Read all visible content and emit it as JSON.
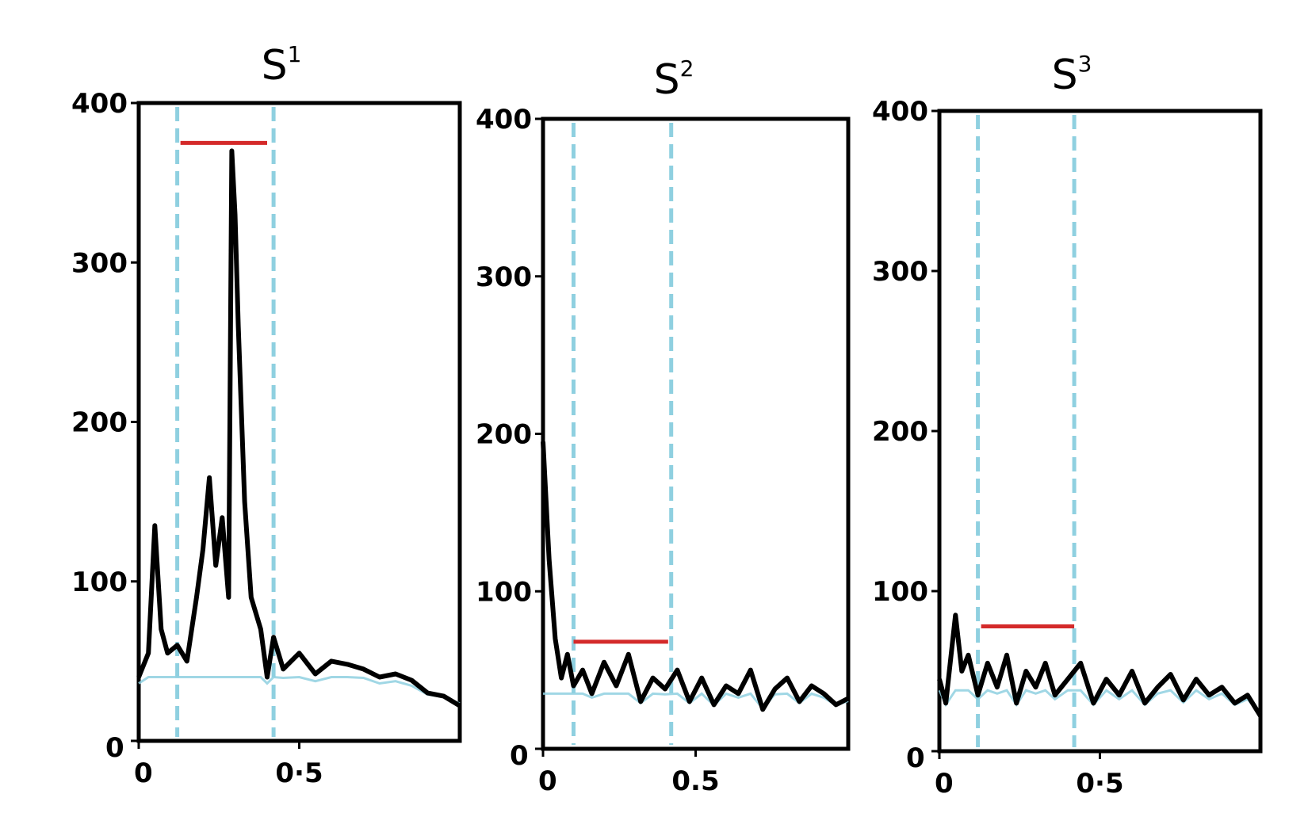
{
  "chart_data": [
    {
      "type": "line",
      "title_base": "S",
      "title_sup": "1",
      "ylim": [
        0,
        400
      ],
      "yticks": [
        0,
        100,
        200,
        300,
        400
      ],
      "xlim": [
        0,
        1
      ],
      "xticks": [
        0,
        0.5
      ],
      "x_tick_labels": [
        "0",
        "0·5"
      ],
      "y_tick_labels": [
        "0",
        "100",
        "200",
        "300",
        "400"
      ],
      "window": [
        0.12,
        0.42
      ],
      "bar": {
        "x0": 0.13,
        "x1": 0.4,
        "y": 375
      },
      "peak": {
        "x": 0.29,
        "y": 375
      },
      "base_level": 40,
      "series": [
        {
          "values_x": [
            0.0,
            0.03,
            0.05,
            0.07,
            0.09,
            0.12,
            0.15,
            0.18,
            0.2,
            0.22,
            0.24,
            0.26,
            0.28,
            0.29,
            0.3,
            0.31,
            0.33,
            0.35,
            0.38,
            0.4,
            0.42,
            0.45,
            0.5,
            0.55,
            0.6,
            0.65,
            0.7,
            0.75,
            0.8,
            0.85,
            0.9,
            0.95,
            1.0
          ],
          "values_y": [
            40,
            55,
            135,
            70,
            55,
            60,
            50,
            90,
            120,
            165,
            110,
            140,
            90,
            370,
            330,
            260,
            150,
            90,
            70,
            40,
            65,
            45,
            55,
            42,
            50,
            48,
            45,
            40,
            42,
            38,
            30,
            28,
            22
          ]
        }
      ]
    },
    {
      "type": "line",
      "title_base": "S",
      "title_sup": "2",
      "ylim": [
        0,
        400
      ],
      "yticks": [
        0,
        100,
        200,
        300,
        400
      ],
      "xlim": [
        0,
        1
      ],
      "xticks": [
        0,
        0.5
      ],
      "x_tick_labels": [
        "0",
        "0.5"
      ],
      "y_tick_labels": [
        "0",
        "100",
        "200",
        "300",
        "400"
      ],
      "window": [
        0.1,
        0.42
      ],
      "bar": {
        "x0": 0.1,
        "x1": 0.41,
        "y": 68
      },
      "base_level": 35,
      "series": [
        {
          "values_x": [
            0.0,
            0.02,
            0.04,
            0.06,
            0.08,
            0.1,
            0.13,
            0.16,
            0.2,
            0.24,
            0.28,
            0.32,
            0.36,
            0.4,
            0.44,
            0.48,
            0.52,
            0.56,
            0.6,
            0.64,
            0.68,
            0.72,
            0.76,
            0.8,
            0.84,
            0.88,
            0.92,
            0.96,
            1.0
          ],
          "values_y": [
            195,
            120,
            70,
            45,
            60,
            40,
            50,
            35,
            55,
            40,
            60,
            30,
            45,
            38,
            50,
            30,
            45,
            28,
            40,
            35,
            50,
            25,
            38,
            45,
            30,
            40,
            35,
            28,
            32
          ]
        }
      ]
    },
    {
      "type": "line",
      "title_base": "S",
      "title_sup": "3",
      "ylim": [
        0,
        400
      ],
      "yticks": [
        0,
        100,
        200,
        300,
        400
      ],
      "xlim": [
        0,
        1
      ],
      "xticks": [
        0,
        0.5
      ],
      "x_tick_labels": [
        "0",
        "0·5"
      ],
      "y_tick_labels": [
        "0",
        "100",
        "200",
        "300",
        "400"
      ],
      "window": [
        0.12,
        0.42
      ],
      "bar": {
        "x0": 0.13,
        "x1": 0.42,
        "y": 78
      },
      "base_level": 38,
      "series": [
        {
          "values_x": [
            0.0,
            0.02,
            0.05,
            0.07,
            0.09,
            0.12,
            0.15,
            0.18,
            0.21,
            0.24,
            0.27,
            0.3,
            0.33,
            0.36,
            0.4,
            0.44,
            0.48,
            0.52,
            0.56,
            0.6,
            0.64,
            0.68,
            0.72,
            0.76,
            0.8,
            0.84,
            0.88,
            0.92,
            0.96,
            1.0
          ],
          "values_y": [
            45,
            30,
            85,
            50,
            60,
            35,
            55,
            40,
            60,
            30,
            50,
            40,
            55,
            35,
            45,
            55,
            30,
            45,
            35,
            50,
            30,
            40,
            48,
            32,
            45,
            35,
            40,
            30,
            35,
            22
          ]
        }
      ]
    }
  ]
}
